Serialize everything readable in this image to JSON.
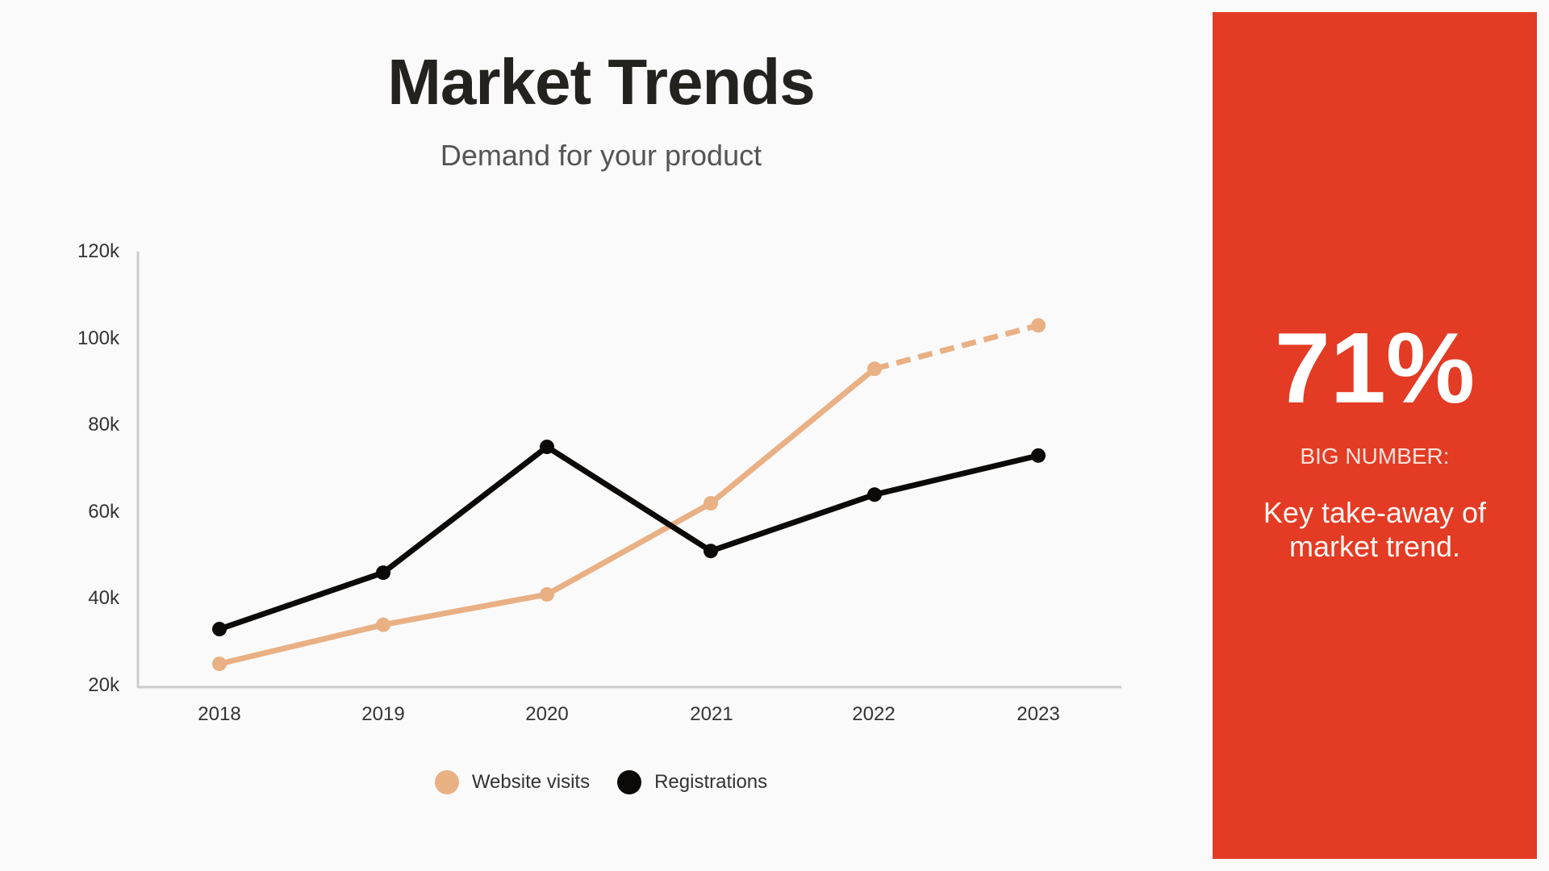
{
  "header": {
    "title": "Market Trends",
    "subtitle": "Demand for your product"
  },
  "panel": {
    "big_number": "71%",
    "label": "BIG NUMBER:",
    "takeaway": "Key take-away of market trend.",
    "background": "#e33b24"
  },
  "legend": [
    {
      "label": "Website visits",
      "color": "#e9b084"
    },
    {
      "label": "Registrations",
      "color": "#0c0a09"
    }
  ],
  "y_ticks": [
    "120k",
    "100k",
    "80k",
    "60k",
    "40k",
    "20k"
  ],
  "x_ticks": [
    "2018",
    "2019",
    "2020",
    "2021",
    "2022",
    "2023"
  ],
  "chart_data": {
    "type": "line",
    "title": "Market Trends",
    "subtitle": "Demand for your product",
    "x": [
      "2018",
      "2019",
      "2020",
      "2021",
      "2022",
      "2023"
    ],
    "series": [
      {
        "name": "Website visits",
        "color": "#e9b084",
        "values": [
          25000,
          34000,
          41000,
          62000,
          93000,
          103000
        ],
        "dashed_from_index": 4
      },
      {
        "name": "Registrations",
        "color": "#0c0a09",
        "values": [
          33000,
          46000,
          75000,
          51000,
          64000,
          73000
        ]
      }
    ],
    "xlabel": "",
    "ylabel": "",
    "ylim": [
      20000,
      120000
    ],
    "y_tick_labels": [
      "20k",
      "40k",
      "60k",
      "80k",
      "100k",
      "120k"
    ],
    "grid": false,
    "legend_position": "bottom"
  }
}
